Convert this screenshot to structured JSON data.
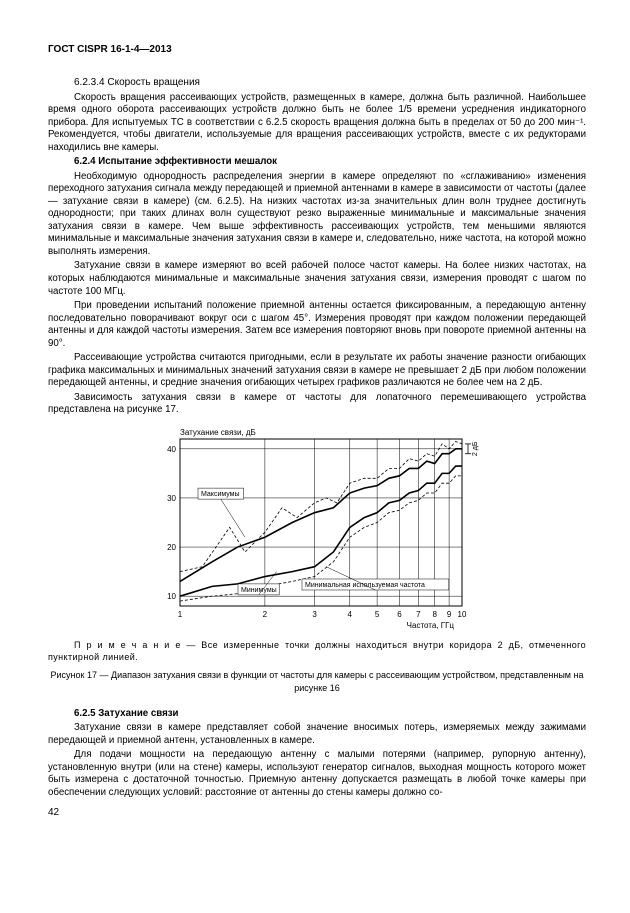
{
  "header": {
    "docid": "ГОСТ CISPR 16-1-4—2013"
  },
  "sections": {
    "s6234": {
      "title": "6.2.3.4 Скорость вращения",
      "p1": "Скорость вращения рассеивающих устройств, размещенных в камере, должна быть различной. Наибольшее время одного оборота рассеивающих устройств должно быть не более 1/5 времени усреднения индикаторного прибора. Для испытуемых TC в соответствии с 6.2.5 скорость вращения должна быть в пределах от 50 до 200 мин⁻¹. Рекомендуется, чтобы двигатели, используемые для вращения рассеивающих устройств, вместе с их редукторами находились вне камеры."
    },
    "s624": {
      "title": "6.2.4 Испытание эффективности мешалок",
      "p1": "Необходимую однородность распределения энергии в камере определяют по «сглаживанию» изменения переходного затухания сигнала между передающей и приемной антеннами в камере в зависимости от частоты (далее — затухание связи в камере) (см. 6.2.5). На низких частотах из-за значительных длин волн труднее достигнуть однородности; при таких длинах волн существуют резко выраженные минимальные и максимальные значения затухания связи в камере. Чем выше эффективность рассеивающих устройств, тем меньшими являются минимальные и максимальные значения затухания связи в камере и, следовательно, ниже частота, на которой можно выполнять измерения.",
      "p2": "Затухание связи в камере измеряют во всей рабочей полосе частот камеры. На более низких частотах, на которых наблюдаются минимальные и максимальные значения затухания связи, измерения проводят с шагом по частоте 100 МГц.",
      "p3": "При проведении испытаний положение приемной антенны остается фиксированным, а передающую антенну последовательно поворачивают вокруг оси с шагом 45°. Измерения проводят при каждом положении передающей антенны и для каждой частоты измерения. Затем все измерения повторяют вновь при повороте приемной антенны на 90°.",
      "p4": "Рассеивающие устройства считаются пригодными, если в результате их работы значение разности огибающих графика максимальных и минимальных значений затухания связи в камере не превышает 2 дБ при любом положении передающей антенны, и средние значения огибающих четырех графиков различаются не более чем на 2 дБ.",
      "p5": "Зависимость затухания связи в камере от частоты для лопаточного перемешивающего устройства представлена на рисунке 17."
    },
    "s625": {
      "title": "6.2.5 Затухание связи",
      "p1": "Затухание связи в камере представляет собой значение вносимых потерь, измеряемых между зажимами передающей и приемной антенн, установленных в камере.",
      "p2": "Для подачи мощности на передающую антенну с малыми потерями (например, рупорную антенну), установленную внутри (или на стене) камеры, используют генератор сигналов, выходная мощность которого может быть измерена с достаточной точностью. Приемную антенну допускается размещать в любой точке камеры при обеспечении следующих условий: расстояние от антенны до стены камеры должно со-"
    }
  },
  "chart": {
    "ylabel": "Затухание связи, дБ",
    "xlabel": "Частота, ГГц",
    "yticks": [
      10,
      20,
      30,
      40
    ],
    "xticks": [
      1,
      2,
      3,
      4,
      5,
      6,
      7,
      8,
      9,
      10
    ],
    "xlog": true,
    "ylim": [
      8,
      42
    ],
    "anns": {
      "max": "Максимумы",
      "min": "Минимумы",
      "minfreq": "Минимальная используемая частота",
      "twodB": "2 дБ"
    },
    "grid_color": "#000",
    "bg": "#ffffff",
    "series": {
      "max_dash": [
        [
          1,
          15
        ],
        [
          1.2,
          16
        ],
        [
          1.5,
          24
        ],
        [
          1.7,
          19
        ],
        [
          2,
          23
        ],
        [
          2.3,
          28
        ],
        [
          2.6,
          26
        ],
        [
          3,
          29
        ],
        [
          3.3,
          30
        ],
        [
          3.6,
          29
        ],
        [
          4,
          33
        ],
        [
          4.5,
          34
        ],
        [
          5,
          34
        ],
        [
          5.5,
          36
        ],
        [
          6,
          36
        ],
        [
          6.5,
          38
        ],
        [
          7,
          37.5
        ],
        [
          7.5,
          39
        ],
        [
          8,
          38.5
        ],
        [
          8.5,
          41
        ],
        [
          9,
          40
        ],
        [
          9.5,
          41.5
        ],
        [
          10,
          41
        ]
      ],
      "max_solid": [
        [
          1,
          13
        ],
        [
          1.3,
          17
        ],
        [
          1.6,
          20
        ],
        [
          2,
          22
        ],
        [
          2.5,
          25
        ],
        [
          3,
          27
        ],
        [
          3.5,
          28
        ],
        [
          4,
          31
        ],
        [
          4.5,
          32
        ],
        [
          5,
          32.5
        ],
        [
          5.5,
          34
        ],
        [
          6,
          34.5
        ],
        [
          6.5,
          36
        ],
        [
          7,
          36
        ],
        [
          7.5,
          37.5
        ],
        [
          8,
          37
        ],
        [
          8.5,
          39
        ],
        [
          9,
          39
        ],
        [
          9.5,
          40
        ],
        [
          10,
          40
        ]
      ],
      "min_solid": [
        [
          1,
          10
        ],
        [
          1.3,
          12
        ],
        [
          1.6,
          12.5
        ],
        [
          2,
          14
        ],
        [
          2.5,
          15
        ],
        [
          3,
          16
        ],
        [
          3.5,
          19
        ],
        [
          4,
          24
        ],
        [
          4.5,
          26
        ],
        [
          5,
          27
        ],
        [
          5.5,
          29
        ],
        [
          6,
          29.5
        ],
        [
          6.5,
          31
        ],
        [
          7,
          31.5
        ],
        [
          7.5,
          33
        ],
        [
          8,
          33
        ],
        [
          8.5,
          35
        ],
        [
          9,
          35
        ],
        [
          9.5,
          36.5
        ],
        [
          10,
          36.5
        ]
      ],
      "min_dash": [
        [
          1,
          9
        ],
        [
          1.3,
          10
        ],
        [
          1.6,
          10.5
        ],
        [
          2,
          12
        ],
        [
          2.5,
          13
        ],
        [
          3,
          14
        ],
        [
          3.5,
          17
        ],
        [
          4,
          22
        ],
        [
          4.5,
          24
        ],
        [
          5,
          25
        ],
        [
          5.5,
          27
        ],
        [
          6,
          27.5
        ],
        [
          6.5,
          29
        ],
        [
          7,
          29.5
        ],
        [
          7.5,
          31
        ],
        [
          8,
          31
        ],
        [
          8.5,
          33
        ],
        [
          9,
          33
        ],
        [
          9.5,
          34.5
        ],
        [
          10,
          34.5
        ]
      ]
    }
  },
  "note": "П р и м е ч а н и е — Все измеренные точки должны находиться внутри коридора 2 дБ, отмеченного пунктирной линией.",
  "figcap": "Рисунок 17 — Диапазон затухания связи в функции от частоты для камеры с рассеивающим устройством, представленным на рисунке 16",
  "pagenum": "42"
}
